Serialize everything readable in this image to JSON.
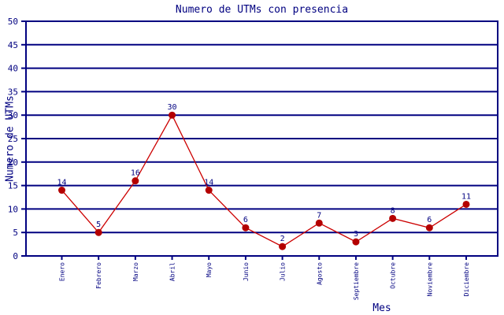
{
  "chart_data": {
    "type": "line",
    "title": "Numero de UTMs con presencia",
    "xlabel": "Mes",
    "ylabel": "Numero de UTMs",
    "categories": [
      "Enero",
      "Febrero",
      "Marzo",
      "Abril",
      "Mayo",
      "Junio",
      "Julio",
      "Agosto",
      "Septiembre",
      "Octubre",
      "Noviembre",
      "Diciembre"
    ],
    "values": [
      14,
      5,
      16,
      30,
      14,
      6,
      2,
      7,
      3,
      8,
      6,
      11
    ],
    "ylim": [
      0,
      50
    ],
    "yticks": [
      0,
      5,
      10,
      15,
      20,
      25,
      30,
      35,
      40,
      45,
      50
    ],
    "grid": true,
    "legend": "none",
    "colors": {
      "axis": "#000080",
      "grid": "#000080",
      "text": "#000080",
      "line": "#cc0000",
      "marker": "#b40000",
      "background": "#ffffff"
    }
  }
}
